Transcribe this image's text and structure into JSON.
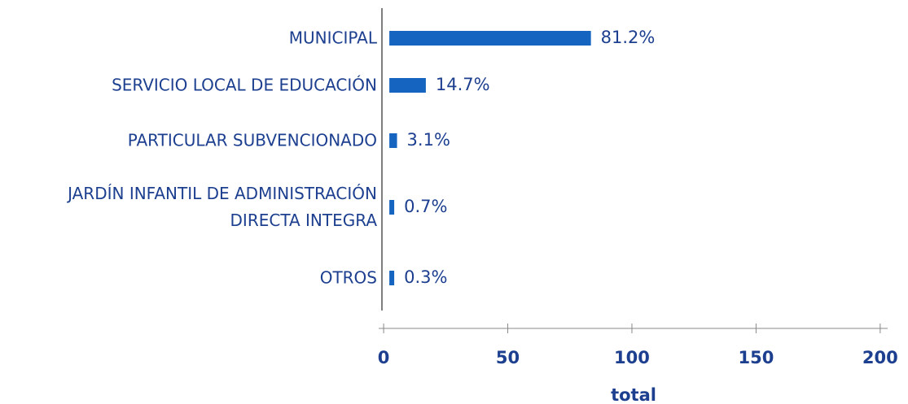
{
  "chart_data": {
    "type": "bar",
    "orientation": "horizontal",
    "categories": [
      "MUNICIPAL",
      "SERVICIO LOCAL DE EDUCACIÓN",
      "PARTICULAR SUBVENCIONADO",
      "JARDÍN INFANTIL DE ADMINISTRACIÓN DIRECTA INTEGRA",
      "OTROS"
    ],
    "values": [
      81.2,
      14.7,
      3.1,
      0.7,
      0.3
    ],
    "value_labels": [
      "81.2%",
      "14.7%",
      "3.1%",
      "0.7%",
      "0.3%"
    ],
    "color": "#1565c0",
    "xlabel": "total",
    "xlim": [
      -2,
      203
    ],
    "xticks": [
      0,
      50,
      100,
      150,
      200
    ],
    "grid": false
  }
}
